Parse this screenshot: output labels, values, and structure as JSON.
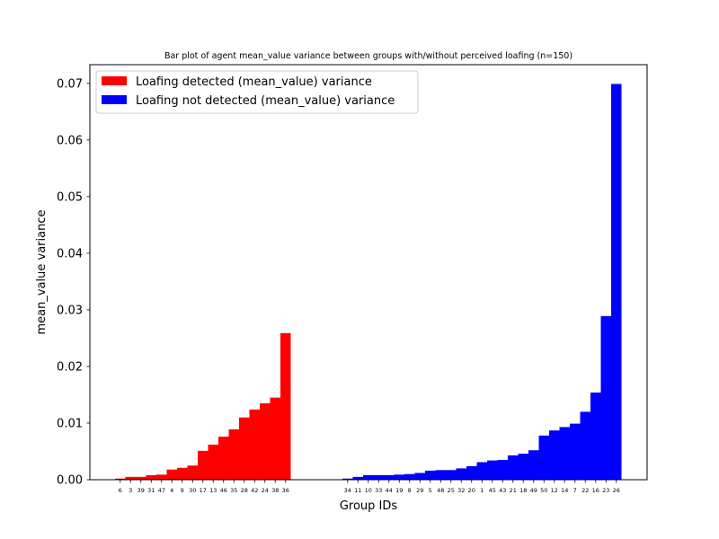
{
  "chart_data": {
    "type": "bar",
    "title": "Bar plot of agent mean_value variance between groups with/without perceived loafing (n=150)",
    "xlabel": "Group IDs",
    "ylabel": "mean_value variance",
    "ylim": [
      0,
      0.0733
    ],
    "yticks": [
      "0.00",
      "0.01",
      "0.02",
      "0.03",
      "0.04",
      "0.05",
      "0.06",
      "0.07"
    ],
    "grid": false,
    "legend_position": "top-left",
    "series": [
      {
        "name": "Loafing detected (mean_value) variance",
        "color": "#ff0000",
        "categories": [
          "6",
          "3",
          "39",
          "31",
          "47",
          "4",
          "9",
          "30",
          "17",
          "13",
          "46",
          "35",
          "28",
          "42",
          "24",
          "38",
          "36"
        ],
        "values": [
          0.0002,
          0.0005,
          0.0005,
          0.0008,
          0.0009,
          0.0018,
          0.0021,
          0.0025,
          0.0051,
          0.0062,
          0.0076,
          0.0089,
          0.011,
          0.0124,
          0.0135,
          0.0145,
          0.0259
        ]
      },
      {
        "name": "Loafing not detected (mean_value) variance",
        "color": "#0000ff",
        "categories": [
          "34",
          "11",
          "10",
          "33",
          "44",
          "19",
          "8",
          "29",
          "5",
          "48",
          "25",
          "32",
          "20",
          "1",
          "45",
          "43",
          "21",
          "18",
          "49",
          "50",
          "12",
          "14",
          "7",
          "22",
          "16",
          "23",
          "26"
        ],
        "values": [
          0.0002,
          0.0005,
          0.0008,
          0.0008,
          0.0008,
          0.0009,
          0.001,
          0.0012,
          0.0016,
          0.0017,
          0.0017,
          0.002,
          0.0024,
          0.0031,
          0.0034,
          0.0035,
          0.0043,
          0.0046,
          0.0052,
          0.0078,
          0.0087,
          0.0093,
          0.0099,
          0.012,
          0.0154,
          0.0289,
          0.0699
        ]
      }
    ]
  }
}
